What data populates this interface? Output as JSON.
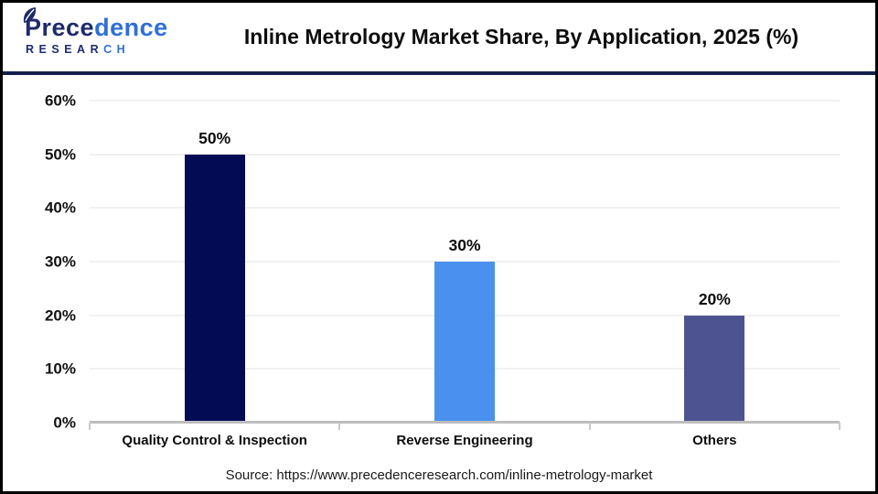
{
  "header": {
    "logo": {
      "word_part1": "Prece",
      "word_part2": "dence",
      "sub_part1": "RESEAR",
      "sub_part2": "CH",
      "navy": "#1e2b6d",
      "blue": "#2f6fd8"
    },
    "title": "Inline Metrology Market Share, By Application, 2025 (%)"
  },
  "chart_data": {
    "type": "bar",
    "title": "Inline Metrology Market Share, By Application, 2025 (%)",
    "categories": [
      "Quality Control & Inspection",
      "Reverse Engineering",
      "Others"
    ],
    "values": [
      50,
      30,
      20
    ],
    "value_labels": [
      "50%",
      "30%",
      "20%"
    ],
    "bar_colors": [
      "#030b55",
      "#4a90ee",
      "#4d5390"
    ],
    "xlabel": "",
    "ylabel": "",
    "ylim": [
      0,
      60
    ],
    "ytick_step": 10,
    "ytick_suffix": "%",
    "grid": true,
    "legend": false,
    "gridline_color": "#f1f1f1",
    "baseline_color": "#bdbdbd"
  },
  "footer": {
    "source": "Source: https://www.precedenceresearch.com/inline-metrology-market"
  }
}
